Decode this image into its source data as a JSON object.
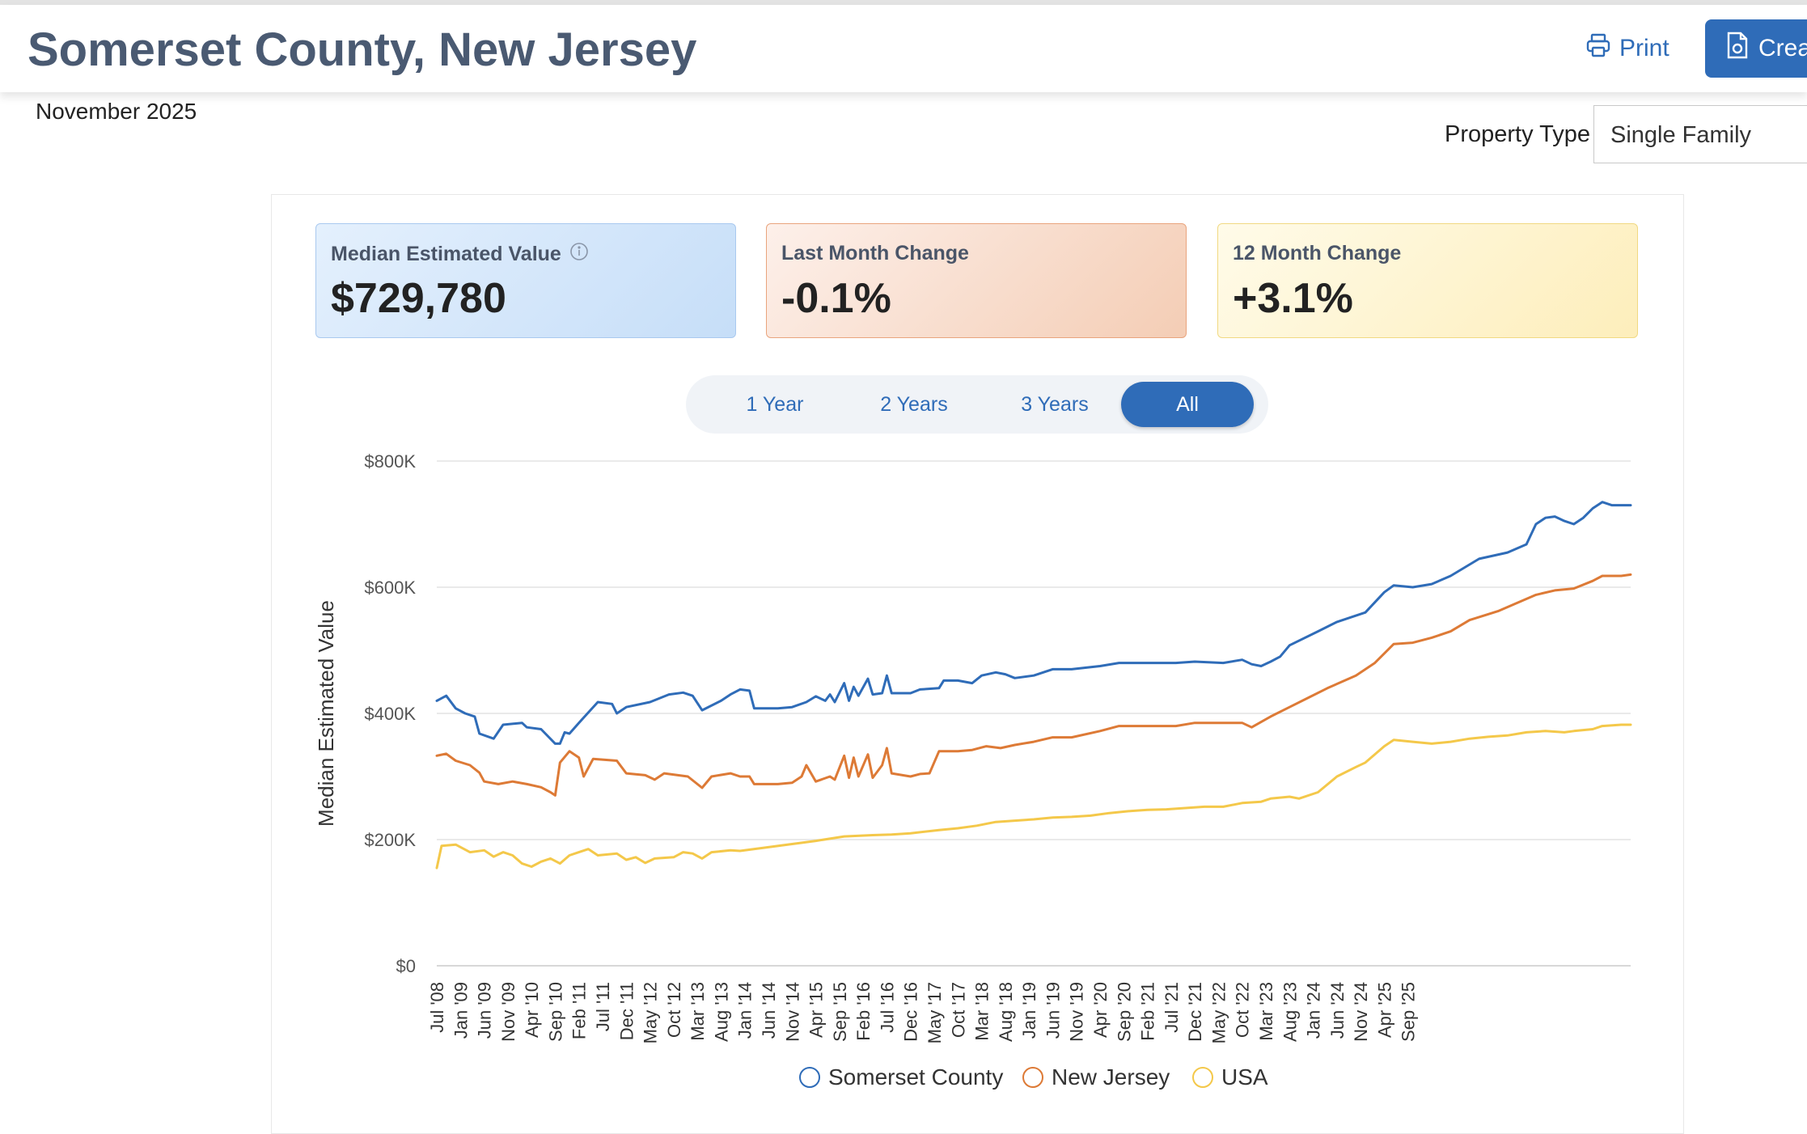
{
  "header": {
    "title": "Somerset County, New Jersey",
    "print_label": "Print",
    "create_label": "Crea"
  },
  "date": "November 2025",
  "property_type": {
    "label": "Property Type",
    "value": "Single Family"
  },
  "cards": [
    {
      "label": "Median Estimated Value",
      "value": "$729,780"
    },
    {
      "label": "Last Month Change",
      "value": "-0.1%"
    },
    {
      "label": "12 Month Change",
      "value": "+3.1%"
    }
  ],
  "ranges": [
    "1 Year",
    "2 Years",
    "3 Years",
    "All"
  ],
  "active_range": "All",
  "colors": {
    "somerset": "#2f6cb8",
    "nj": "#dd7a36",
    "usa": "#f4c84a",
    "accent": "#2f6cb8"
  },
  "chart_data": {
    "type": "line",
    "title": "",
    "ylabel": "Median Estimated Value",
    "xlabel": "",
    "ylim": [
      0,
      800000
    ],
    "yticks": [
      0,
      200000,
      400000,
      600000,
      800000
    ],
    "ytick_labels": [
      "$0",
      "$200K",
      "$400K",
      "$600K",
      "$800K"
    ],
    "x_start": "2008-07",
    "x_end": "2025-11",
    "tick_labels": [
      "Jul '08",
      "Jan '09",
      "Jun '09",
      "Nov '09",
      "Apr '10",
      "Sep '10",
      "Feb '11",
      "Jul '11",
      "Dec '11",
      "May '12",
      "Oct '12",
      "Mar '13",
      "Aug '13",
      "Jan '14",
      "Jun '14",
      "Nov '14",
      "Apr '15",
      "Sep '15",
      "Feb '16",
      "Jul '16",
      "Dec '16",
      "May '17",
      "Oct '17",
      "Mar '18",
      "Aug '18",
      "Jan '19",
      "Jun '19",
      "Nov '19",
      "Apr '20",
      "Sep '20",
      "Feb '21",
      "Jul '21",
      "Dec '21",
      "May '22",
      "Oct '22",
      "Mar '23",
      "Aug '23",
      "Jan '24",
      "Jun '24",
      "Nov '24",
      "Apr '25",
      "Sep '25"
    ],
    "series": [
      {
        "name": "Somerset County",
        "color": "#2f6cb8",
        "points": [
          [
            0,
            420000
          ],
          [
            2,
            428000
          ],
          [
            4,
            408000
          ],
          [
            6,
            400000
          ],
          [
            8,
            395000
          ],
          [
            9,
            368000
          ],
          [
            12,
            360000
          ],
          [
            14,
            382000
          ],
          [
            18,
            385000
          ],
          [
            19,
            378000
          ],
          [
            22,
            375000
          ],
          [
            25,
            352000
          ],
          [
            26,
            352000
          ],
          [
            27,
            370000
          ],
          [
            28,
            368000
          ],
          [
            30,
            385000
          ],
          [
            34,
            418000
          ],
          [
            37,
            415000
          ],
          [
            38,
            400000
          ],
          [
            40,
            410000
          ],
          [
            45,
            418000
          ],
          [
            49,
            430000
          ],
          [
            52,
            433000
          ],
          [
            54,
            428000
          ],
          [
            56,
            405000
          ],
          [
            60,
            420000
          ],
          [
            62,
            430000
          ],
          [
            64,
            438000
          ],
          [
            66,
            436000
          ],
          [
            67,
            408000
          ],
          [
            72,
            408000
          ],
          [
            75,
            410000
          ],
          [
            78,
            418000
          ],
          [
            80,
            427000
          ],
          [
            82,
            420000
          ],
          [
            83,
            430000
          ],
          [
            84,
            418000
          ],
          [
            86,
            448000
          ],
          [
            87,
            420000
          ],
          [
            88,
            442000
          ],
          [
            89,
            428000
          ],
          [
            91,
            455000
          ],
          [
            92,
            430000
          ],
          [
            94,
            432000
          ],
          [
            95,
            460000
          ],
          [
            96,
            432000
          ],
          [
            100,
            432000
          ],
          [
            102,
            438000
          ],
          [
            106,
            440000
          ],
          [
            107,
            452000
          ],
          [
            110,
            452000
          ],
          [
            113,
            448000
          ],
          [
            115,
            460000
          ],
          [
            118,
            465000
          ],
          [
            120,
            462000
          ],
          [
            122,
            456000
          ],
          [
            126,
            460000
          ],
          [
            130,
            470000
          ],
          [
            134,
            470000
          ],
          [
            140,
            475000
          ],
          [
            144,
            480000
          ],
          [
            150,
            480000
          ],
          [
            156,
            480000
          ],
          [
            160,
            482000
          ],
          [
            166,
            480000
          ],
          [
            170,
            485000
          ],
          [
            172,
            478000
          ],
          [
            174,
            475000
          ],
          [
            176,
            482000
          ],
          [
            178,
            490000
          ],
          [
            180,
            508000
          ],
          [
            186,
            530000
          ],
          [
            190,
            545000
          ],
          [
            196,
            560000
          ],
          [
            200,
            592000
          ],
          [
            202,
            603000
          ],
          [
            206,
            600000
          ],
          [
            210,
            605000
          ],
          [
            214,
            618000
          ],
          [
            220,
            645000
          ],
          [
            226,
            655000
          ],
          [
            230,
            668000
          ],
          [
            232,
            700000
          ],
          [
            234,
            710000
          ],
          [
            236,
            712000
          ],
          [
            238,
            705000
          ],
          [
            240,
            700000
          ],
          [
            242,
            710000
          ],
          [
            244,
            725000
          ],
          [
            246,
            735000
          ],
          [
            248,
            730000
          ],
          [
            252,
            730000
          ]
        ]
      },
      {
        "name": "New Jersey",
        "color": "#dd7a36",
        "points": [
          [
            0,
            333000
          ],
          [
            2,
            336000
          ],
          [
            4,
            325000
          ],
          [
            7,
            318000
          ],
          [
            9,
            306000
          ],
          [
            10,
            292000
          ],
          [
            13,
            288000
          ],
          [
            16,
            292000
          ],
          [
            19,
            288000
          ],
          [
            22,
            283000
          ],
          [
            24,
            275000
          ],
          [
            25,
            270000
          ],
          [
            26,
            322000
          ],
          [
            28,
            340000
          ],
          [
            30,
            330000
          ],
          [
            31,
            300000
          ],
          [
            33,
            328000
          ],
          [
            38,
            325000
          ],
          [
            40,
            305000
          ],
          [
            44,
            302000
          ],
          [
            46,
            295000
          ],
          [
            48,
            305000
          ],
          [
            53,
            300000
          ],
          [
            56,
            282000
          ],
          [
            58,
            300000
          ],
          [
            62,
            305000
          ],
          [
            64,
            300000
          ],
          [
            66,
            300000
          ],
          [
            67,
            288000
          ],
          [
            72,
            288000
          ],
          [
            75,
            290000
          ],
          [
            77,
            300000
          ],
          [
            78,
            318000
          ],
          [
            80,
            292000
          ],
          [
            83,
            300000
          ],
          [
            84,
            295000
          ],
          [
            86,
            333000
          ],
          [
            87,
            298000
          ],
          [
            88,
            330000
          ],
          [
            89,
            300000
          ],
          [
            91,
            335000
          ],
          [
            92,
            298000
          ],
          [
            94,
            318000
          ],
          [
            95,
            345000
          ],
          [
            96,
            305000
          ],
          [
            100,
            300000
          ],
          [
            102,
            304000
          ],
          [
            104,
            305000
          ],
          [
            106,
            340000
          ],
          [
            110,
            340000
          ],
          [
            113,
            342000
          ],
          [
            116,
            348000
          ],
          [
            119,
            345000
          ],
          [
            122,
            350000
          ],
          [
            126,
            355000
          ],
          [
            130,
            362000
          ],
          [
            134,
            362000
          ],
          [
            140,
            372000
          ],
          [
            144,
            380000
          ],
          [
            150,
            380000
          ],
          [
            156,
            380000
          ],
          [
            160,
            385000
          ],
          [
            166,
            385000
          ],
          [
            170,
            385000
          ],
          [
            172,
            378000
          ],
          [
            176,
            395000
          ],
          [
            180,
            410000
          ],
          [
            184,
            425000
          ],
          [
            188,
            440000
          ],
          [
            194,
            460000
          ],
          [
            198,
            480000
          ],
          [
            202,
            510000
          ],
          [
            206,
            512000
          ],
          [
            210,
            520000
          ],
          [
            214,
            530000
          ],
          [
            218,
            548000
          ],
          [
            224,
            562000
          ],
          [
            228,
            575000
          ],
          [
            232,
            588000
          ],
          [
            236,
            595000
          ],
          [
            240,
            598000
          ],
          [
            244,
            610000
          ],
          [
            246,
            618000
          ],
          [
            250,
            618000
          ],
          [
            252,
            620000
          ]
        ]
      },
      {
        "name": "USA",
        "color": "#f4c84a",
        "points": [
          [
            0,
            155000
          ],
          [
            1,
            190000
          ],
          [
            4,
            192000
          ],
          [
            7,
            180000
          ],
          [
            10,
            183000
          ],
          [
            12,
            173000
          ],
          [
            14,
            180000
          ],
          [
            16,
            175000
          ],
          [
            18,
            162000
          ],
          [
            20,
            157000
          ],
          [
            22,
            165000
          ],
          [
            24,
            170000
          ],
          [
            26,
            162000
          ],
          [
            28,
            175000
          ],
          [
            30,
            180000
          ],
          [
            32,
            185000
          ],
          [
            34,
            175000
          ],
          [
            38,
            178000
          ],
          [
            40,
            168000
          ],
          [
            42,
            172000
          ],
          [
            44,
            163000
          ],
          [
            46,
            170000
          ],
          [
            50,
            172000
          ],
          [
            52,
            180000
          ],
          [
            54,
            178000
          ],
          [
            56,
            170000
          ],
          [
            58,
            180000
          ],
          [
            62,
            183000
          ],
          [
            64,
            182000
          ],
          [
            70,
            188000
          ],
          [
            80,
            198000
          ],
          [
            86,
            205000
          ],
          [
            92,
            207000
          ],
          [
            96,
            208000
          ],
          [
            100,
            210000
          ],
          [
            106,
            215000
          ],
          [
            110,
            218000
          ],
          [
            114,
            222000
          ],
          [
            118,
            228000
          ],
          [
            122,
            230000
          ],
          [
            126,
            232000
          ],
          [
            130,
            235000
          ],
          [
            134,
            236000
          ],
          [
            138,
            238000
          ],
          [
            142,
            242000
          ],
          [
            146,
            245000
          ],
          [
            150,
            247000
          ],
          [
            154,
            248000
          ],
          [
            158,
            250000
          ],
          [
            162,
            252000
          ],
          [
            166,
            252000
          ],
          [
            170,
            258000
          ],
          [
            174,
            260000
          ],
          [
            176,
            265000
          ],
          [
            180,
            268000
          ],
          [
            182,
            265000
          ],
          [
            186,
            275000
          ],
          [
            190,
            300000
          ],
          [
            194,
            315000
          ],
          [
            196,
            322000
          ],
          [
            200,
            348000
          ],
          [
            202,
            358000
          ],
          [
            206,
            355000
          ],
          [
            210,
            352000
          ],
          [
            214,
            355000
          ],
          [
            218,
            360000
          ],
          [
            222,
            363000
          ],
          [
            226,
            365000
          ],
          [
            230,
            370000
          ],
          [
            234,
            372000
          ],
          [
            238,
            370000
          ],
          [
            240,
            372000
          ],
          [
            244,
            375000
          ],
          [
            246,
            380000
          ],
          [
            250,
            382000
          ],
          [
            252,
            382000
          ]
        ]
      }
    ]
  }
}
